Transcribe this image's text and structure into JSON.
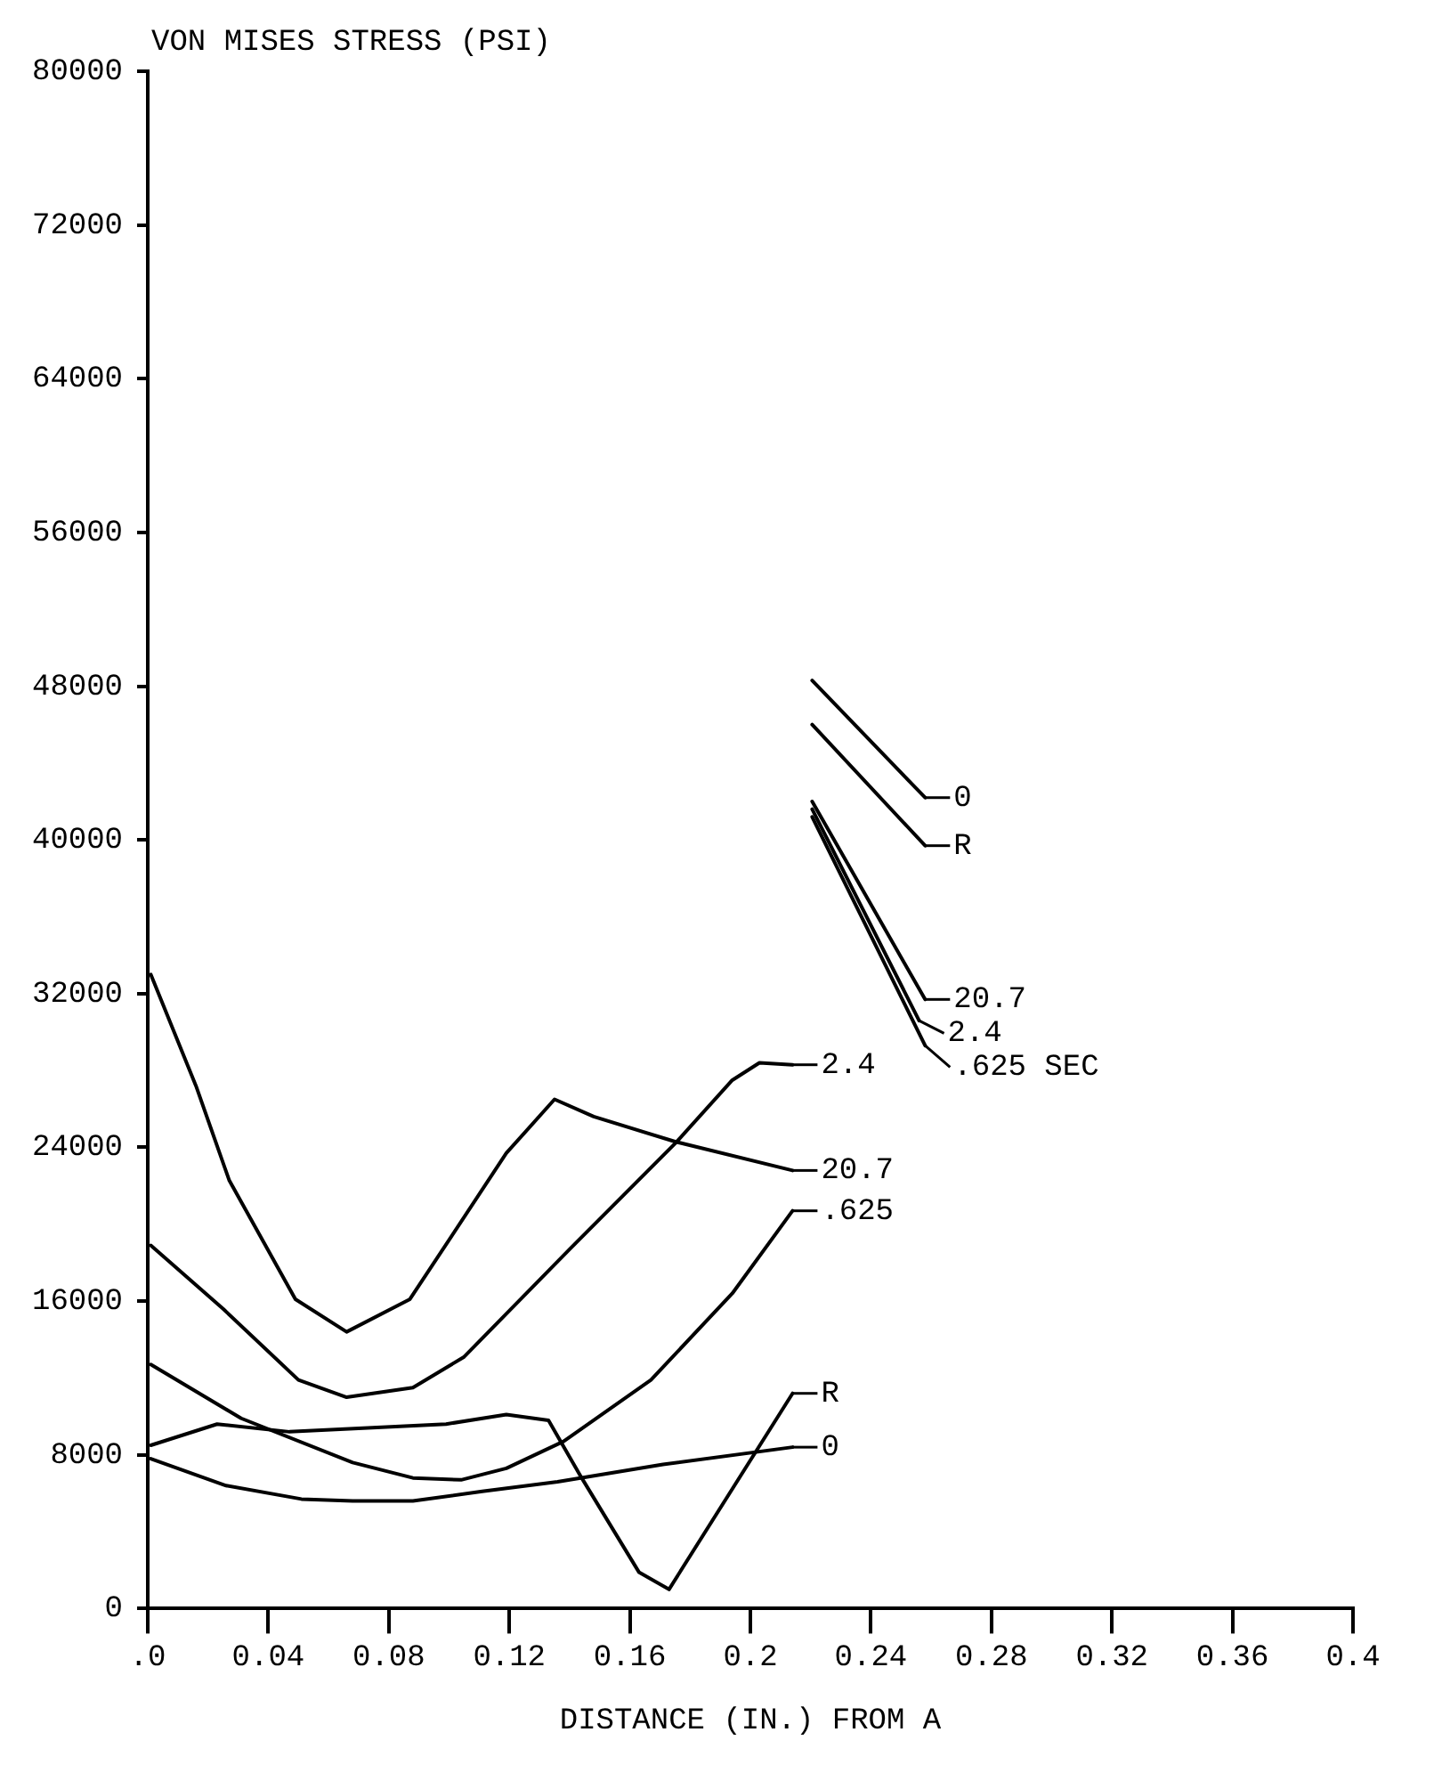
{
  "chart_data": {
    "type": "line",
    "ylabel": "VON MISES STRESS (PSI)",
    "xlabel": "DISTANCE (IN.) FROM A",
    "xlim": [
      0,
      0.4
    ],
    "xticks": [
      {
        "value": 0,
        "label": ".0"
      },
      0.04,
      0.08,
      0.12,
      0.16,
      0.2,
      0.24,
      0.28,
      0.32,
      0.36,
      0.4
    ],
    "ylim": [
      0,
      80000
    ],
    "yticks": [
      0,
      8000,
      16000,
      24000,
      32000,
      40000,
      48000,
      56000,
      64000,
      72000,
      80000
    ],
    "grid": false,
    "legend": "right",
    "marker": "none",
    "line_style": "solid",
    "series": [
      {
        "name": "2.4",
        "color": "#000000",
        "x": [
          0.001,
          0.025,
          0.05,
          0.066,
          0.088,
          0.105,
          0.14,
          0.175,
          0.194,
          0.203,
          0.214
        ],
        "values": [
          18900,
          15600,
          11900,
          11000,
          11500,
          13100,
          18700,
          24200,
          27500,
          28400,
          28300
        ]
      },
      {
        "name": "20.7",
        "color": "#000000",
        "x": [
          0.001,
          0.016,
          0.027,
          0.049,
          0.066,
          0.087,
          0.119,
          0.135,
          0.148,
          0.175,
          0.214
        ],
        "values": [
          33000,
          27200,
          22300,
          16100,
          14400,
          16100,
          23700,
          26500,
          25600,
          24300,
          22800
        ]
      },
      {
        "name": ".625",
        "color": "#000000",
        "x": [
          0.001,
          0.031,
          0.068,
          0.088,
          0.104,
          0.119,
          0.138,
          0.167,
          0.194,
          0.214
        ],
        "values": [
          12700,
          9900,
          7600,
          6800,
          6700,
          7300,
          8700,
          11900,
          16400,
          20700
        ]
      },
      {
        "name": "R",
        "color": "#000000",
        "x": [
          0.001,
          0.023,
          0.047,
          0.099,
          0.119,
          0.133,
          0.144,
          0.163,
          0.173,
          0.214
        ],
        "values": [
          8500,
          9600,
          9200,
          9600,
          10100,
          9800,
          6800,
          1900,
          1000,
          11200
        ]
      },
      {
        "name": "0",
        "color": "#000000",
        "x": [
          0.001,
          0.026,
          0.051,
          0.068,
          0.088,
          0.111,
          0.136,
          0.171,
          0.214
        ],
        "values": [
          7800,
          6400,
          5700,
          5600,
          5600,
          6100,
          6600,
          7500,
          8400
        ]
      },
      {
        "name": "0",
        "color": "#000000",
        "x": [
          0.2205,
          0.258
        ],
        "values": [
          48300,
          42200
        ]
      },
      {
        "name": "R",
        "color": "#000000",
        "x": [
          0.2205,
          0.258
        ],
        "values": [
          46000,
          39700
        ]
      },
      {
        "name": "20.7",
        "color": "#000000",
        "x": [
          0.2205,
          0.258
        ],
        "values": [
          42000,
          31700
        ]
      },
      {
        "name": "2.4",
        "color": "#000000",
        "x": [
          0.2205,
          0.256
        ],
        "values": [
          41600,
          30600
        ]
      },
      {
        "name": ".625 SEC",
        "color": "#000000",
        "x": [
          0.2205,
          0.258
        ],
        "values": [
          41200,
          29300
        ]
      }
    ]
  }
}
